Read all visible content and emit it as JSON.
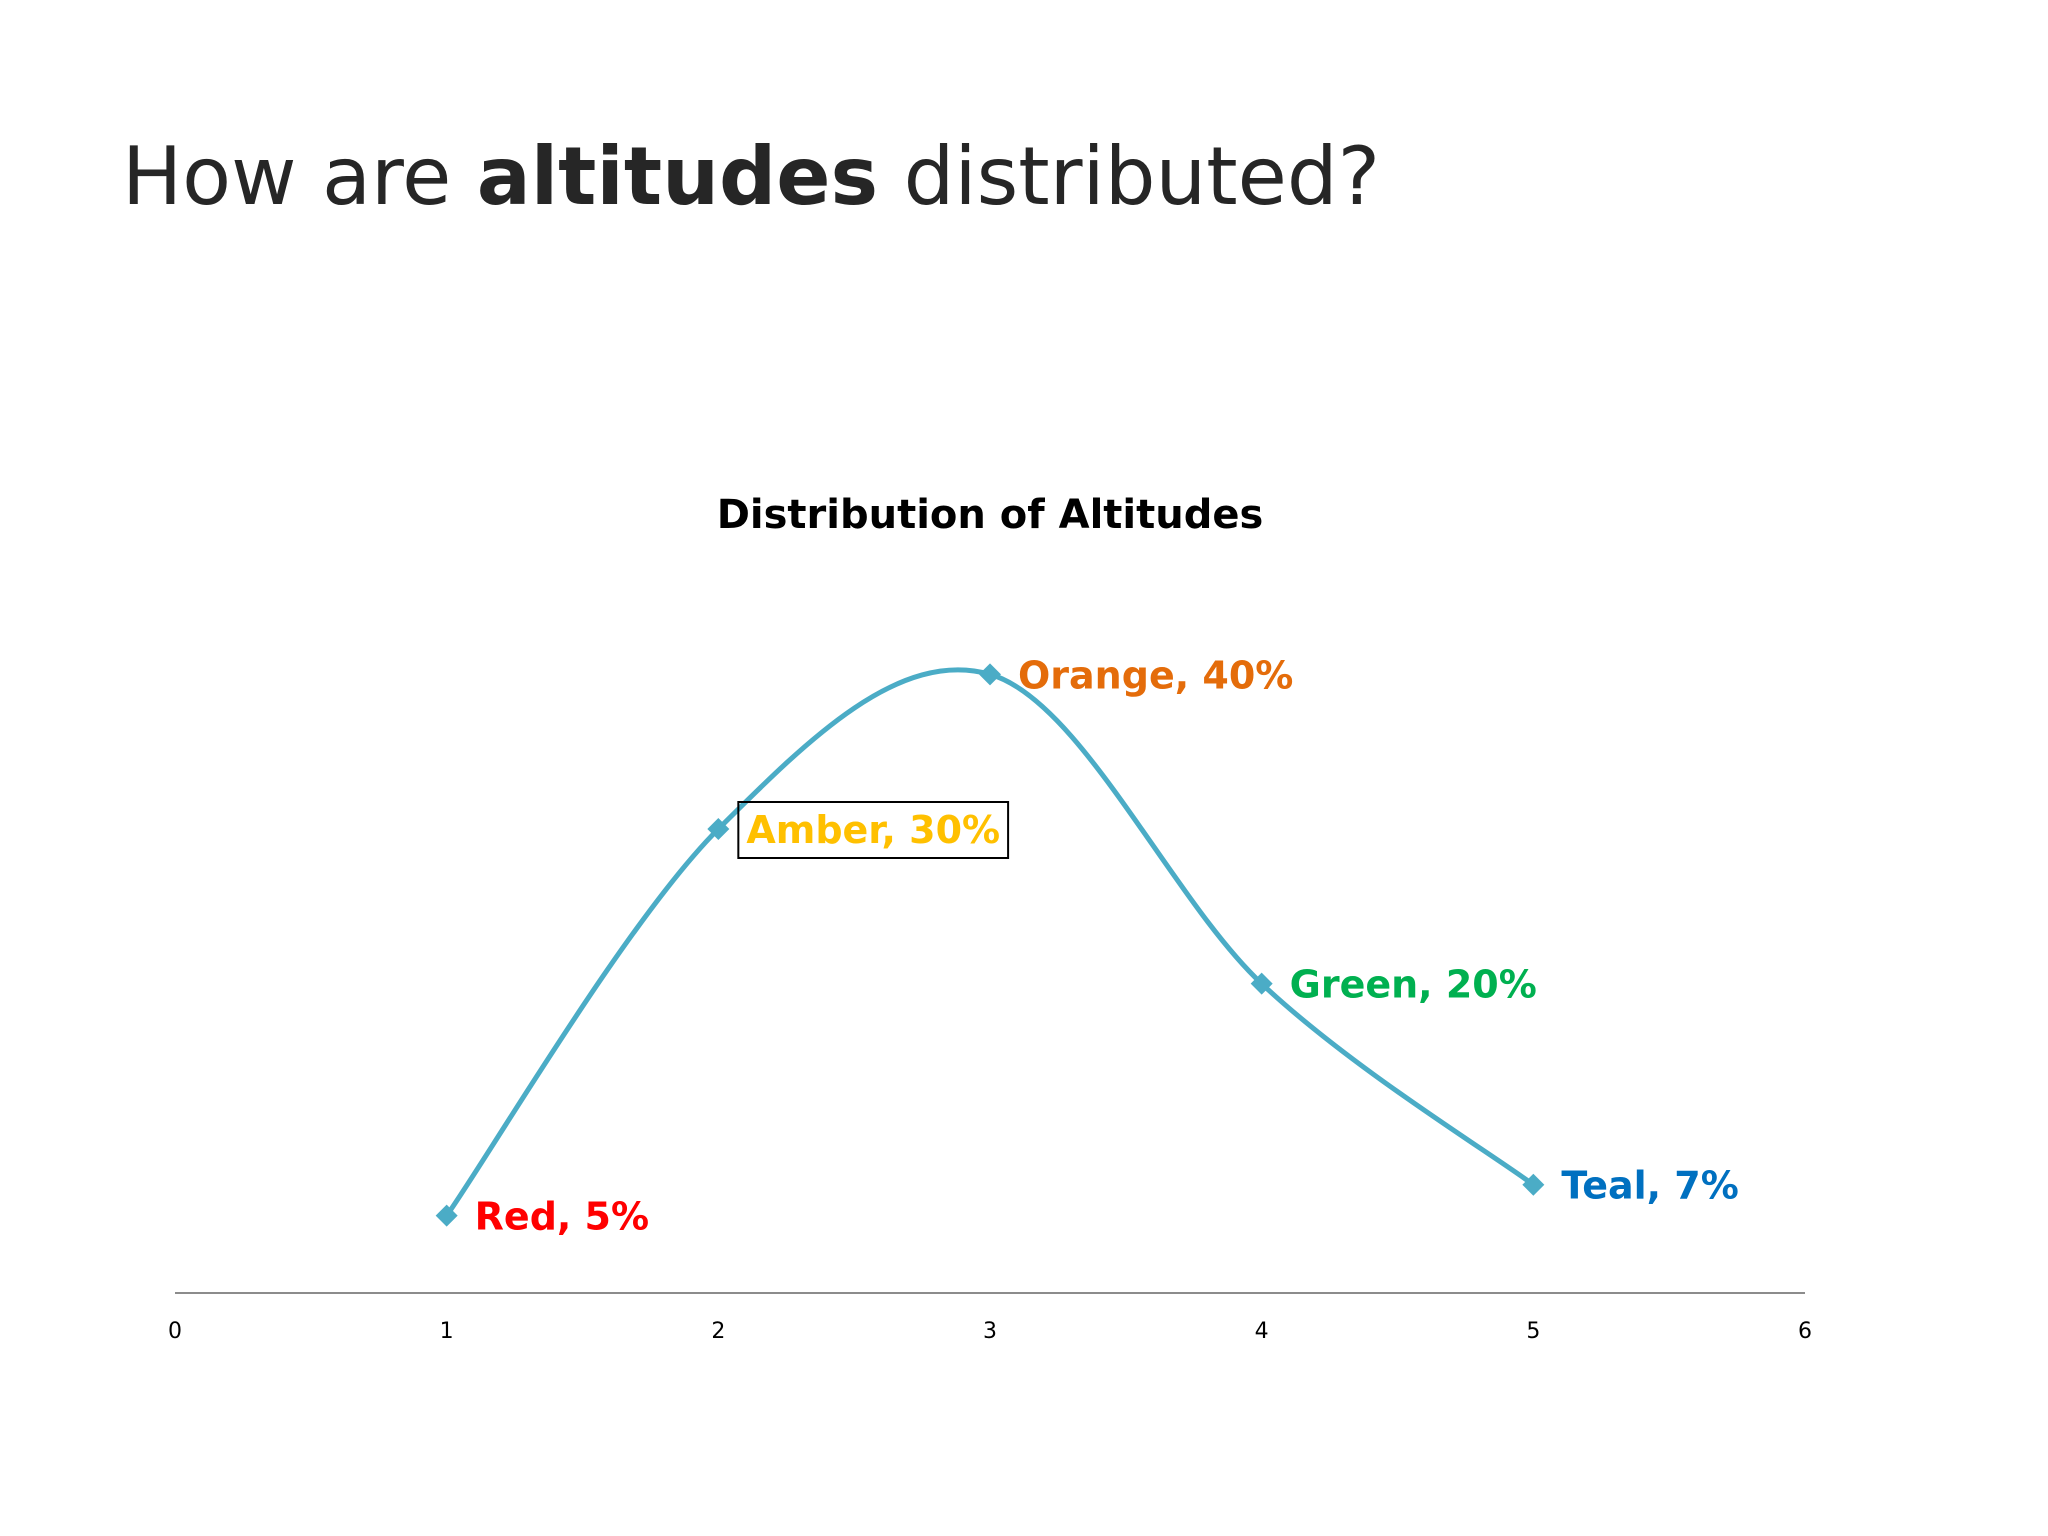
{
  "slide": {
    "title_prefix": "How are ",
    "title_bold": "altitudes",
    "title_suffix": " distributed?"
  },
  "chart_data": {
    "type": "line",
    "title": "Distribution of Altitudes",
    "xlabel": "",
    "ylabel": "",
    "x_ticks": [
      0,
      1,
      2,
      3,
      4,
      5,
      6
    ],
    "xlim": [
      0,
      6
    ],
    "ylim": [
      0,
      45
    ],
    "smooth": true,
    "grid": false,
    "line_color": "#4BACC6",
    "axis_color": "#8c8c8c",
    "points": [
      {
        "x": 1,
        "y": 5,
        "label": "Red, 5%",
        "color": "#FF0000"
      },
      {
        "x": 2,
        "y": 30,
        "label": "Amber, 30%",
        "color": "#FFC000",
        "boxed": true
      },
      {
        "x": 3,
        "y": 40,
        "label": "Orange, 40%",
        "color": "#E46C0A"
      },
      {
        "x": 4,
        "y": 20,
        "label": "Green, 20%",
        "color": "#00B050"
      },
      {
        "x": 5,
        "y": 7,
        "label": "Teal, 7%",
        "color": "#0070C0"
      }
    ]
  }
}
